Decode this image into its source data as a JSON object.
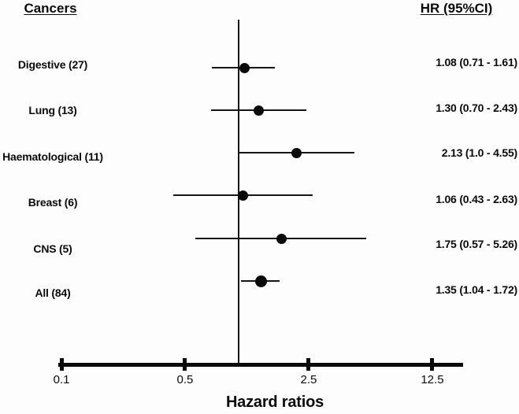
{
  "headers": {
    "left": "Cancers",
    "right": "HR (95%CI)"
  },
  "chart_data": {
    "type": "scatter",
    "subtype": "forest-plot",
    "xlabel": "Hazard ratios",
    "x_scale": "log",
    "x_ticks": [
      {
        "value": 0.1,
        "label": "0.1"
      },
      {
        "value": 0.5,
        "label": "0.5"
      },
      {
        "value": 2.5,
        "label": "2.5"
      },
      {
        "value": 12.5,
        "label": "12.5"
      }
    ],
    "reference_line_value": 1.0,
    "rows": [
      {
        "label": "Digestive (27)",
        "hr": 1.08,
        "ci_low": 0.71,
        "ci_high": 1.61,
        "hr_text": "1.08 (0.71 - 1.61)",
        "summary": false
      },
      {
        "label": "Lung (13)",
        "hr": 1.3,
        "ci_low": 0.7,
        "ci_high": 2.43,
        "hr_text": "1.30 (0.70 - 2.43)",
        "summary": false
      },
      {
        "label": "Haematological (11)",
        "hr": 2.13,
        "ci_low": 1.0,
        "ci_high": 4.55,
        "hr_text": "2.13 (1.0 - 4.55)",
        "summary": false
      },
      {
        "label": "Breast (6)",
        "hr": 1.06,
        "ci_low": 0.43,
        "ci_high": 2.63,
        "hr_text": "1.06 (0.43 - 2.63)",
        "summary": false
      },
      {
        "label": "CNS (5)",
        "hr": 1.75,
        "ci_low": 0.57,
        "ci_high": 5.26,
        "hr_text": "1.75 (0.57 - 5.26)",
        "summary": false
      },
      {
        "label": "All (84)",
        "hr": 1.35,
        "ci_low": 1.04,
        "ci_high": 1.72,
        "hr_text": "1.35 (1.04 - 1.72)",
        "summary": true
      }
    ],
    "colors": {
      "marker": "#0a0a0a",
      "line": "#161616",
      "background": "#fdfdfd"
    }
  }
}
